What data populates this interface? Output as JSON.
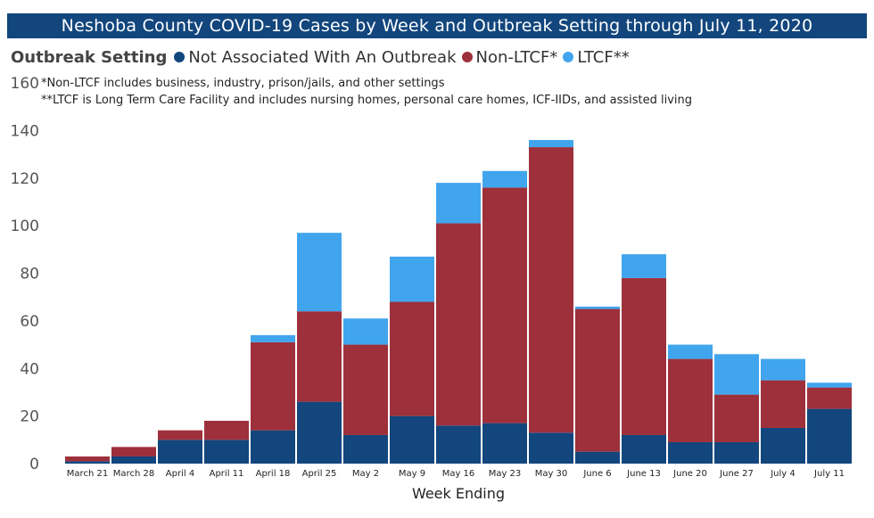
{
  "title": "Neshoba County COVID-19 Cases by Week and Outbreak Setting through July 11, 2020",
  "legend": {
    "title": "Outbreak Setting",
    "items": [
      {
        "label": "Not Associated With An Outbreak",
        "color": "#12467d"
      },
      {
        "label": "Non-LTCF*",
        "color": "#9e303b"
      },
      {
        "label": "LTCF**",
        "color": "#41a5ee"
      }
    ]
  },
  "notes": [
    "*Non-LTCF includes business, industry, prison/jails, and other settings",
    "**LTCF is Long Term Care Facility and includes nursing homes, personal care homes, ICF-IIDs, and assisted living"
  ],
  "chart_data": {
    "type": "bar",
    "stacked": true,
    "title": "Neshoba County COVID-19 Cases by Week and Outbreak Setting through July 11, 2020",
    "xlabel": "Week Ending",
    "ylabel": "",
    "ylim": [
      0,
      160
    ],
    "yticks": [
      0,
      20,
      40,
      60,
      80,
      100,
      120,
      140,
      160
    ],
    "categories": [
      "March 21",
      "March 28",
      "April 4",
      "April 11",
      "April 18",
      "April 25",
      "May 2",
      "May 9",
      "May 16",
      "May 23",
      "May 30",
      "June 6",
      "June 13",
      "June 20",
      "June 27",
      "July 4",
      "July 11"
    ],
    "series": [
      {
        "name": "Not Associated With An Outbreak",
        "color": "#12467d",
        "values": [
          1,
          3,
          10,
          10,
          14,
          26,
          12,
          20,
          16,
          17,
          13,
          5,
          12,
          9,
          9,
          15,
          23
        ]
      },
      {
        "name": "Non-LTCF*",
        "color": "#9e303b",
        "values": [
          2,
          4,
          4,
          8,
          37,
          38,
          38,
          48,
          85,
          99,
          120,
          60,
          66,
          35,
          20,
          20,
          9
        ]
      },
      {
        "name": "LTCF**",
        "color": "#41a5ee",
        "values": [
          0,
          0,
          0,
          0,
          3,
          33,
          11,
          19,
          17,
          7,
          3,
          1,
          10,
          6,
          17,
          9,
          2
        ]
      }
    ]
  }
}
